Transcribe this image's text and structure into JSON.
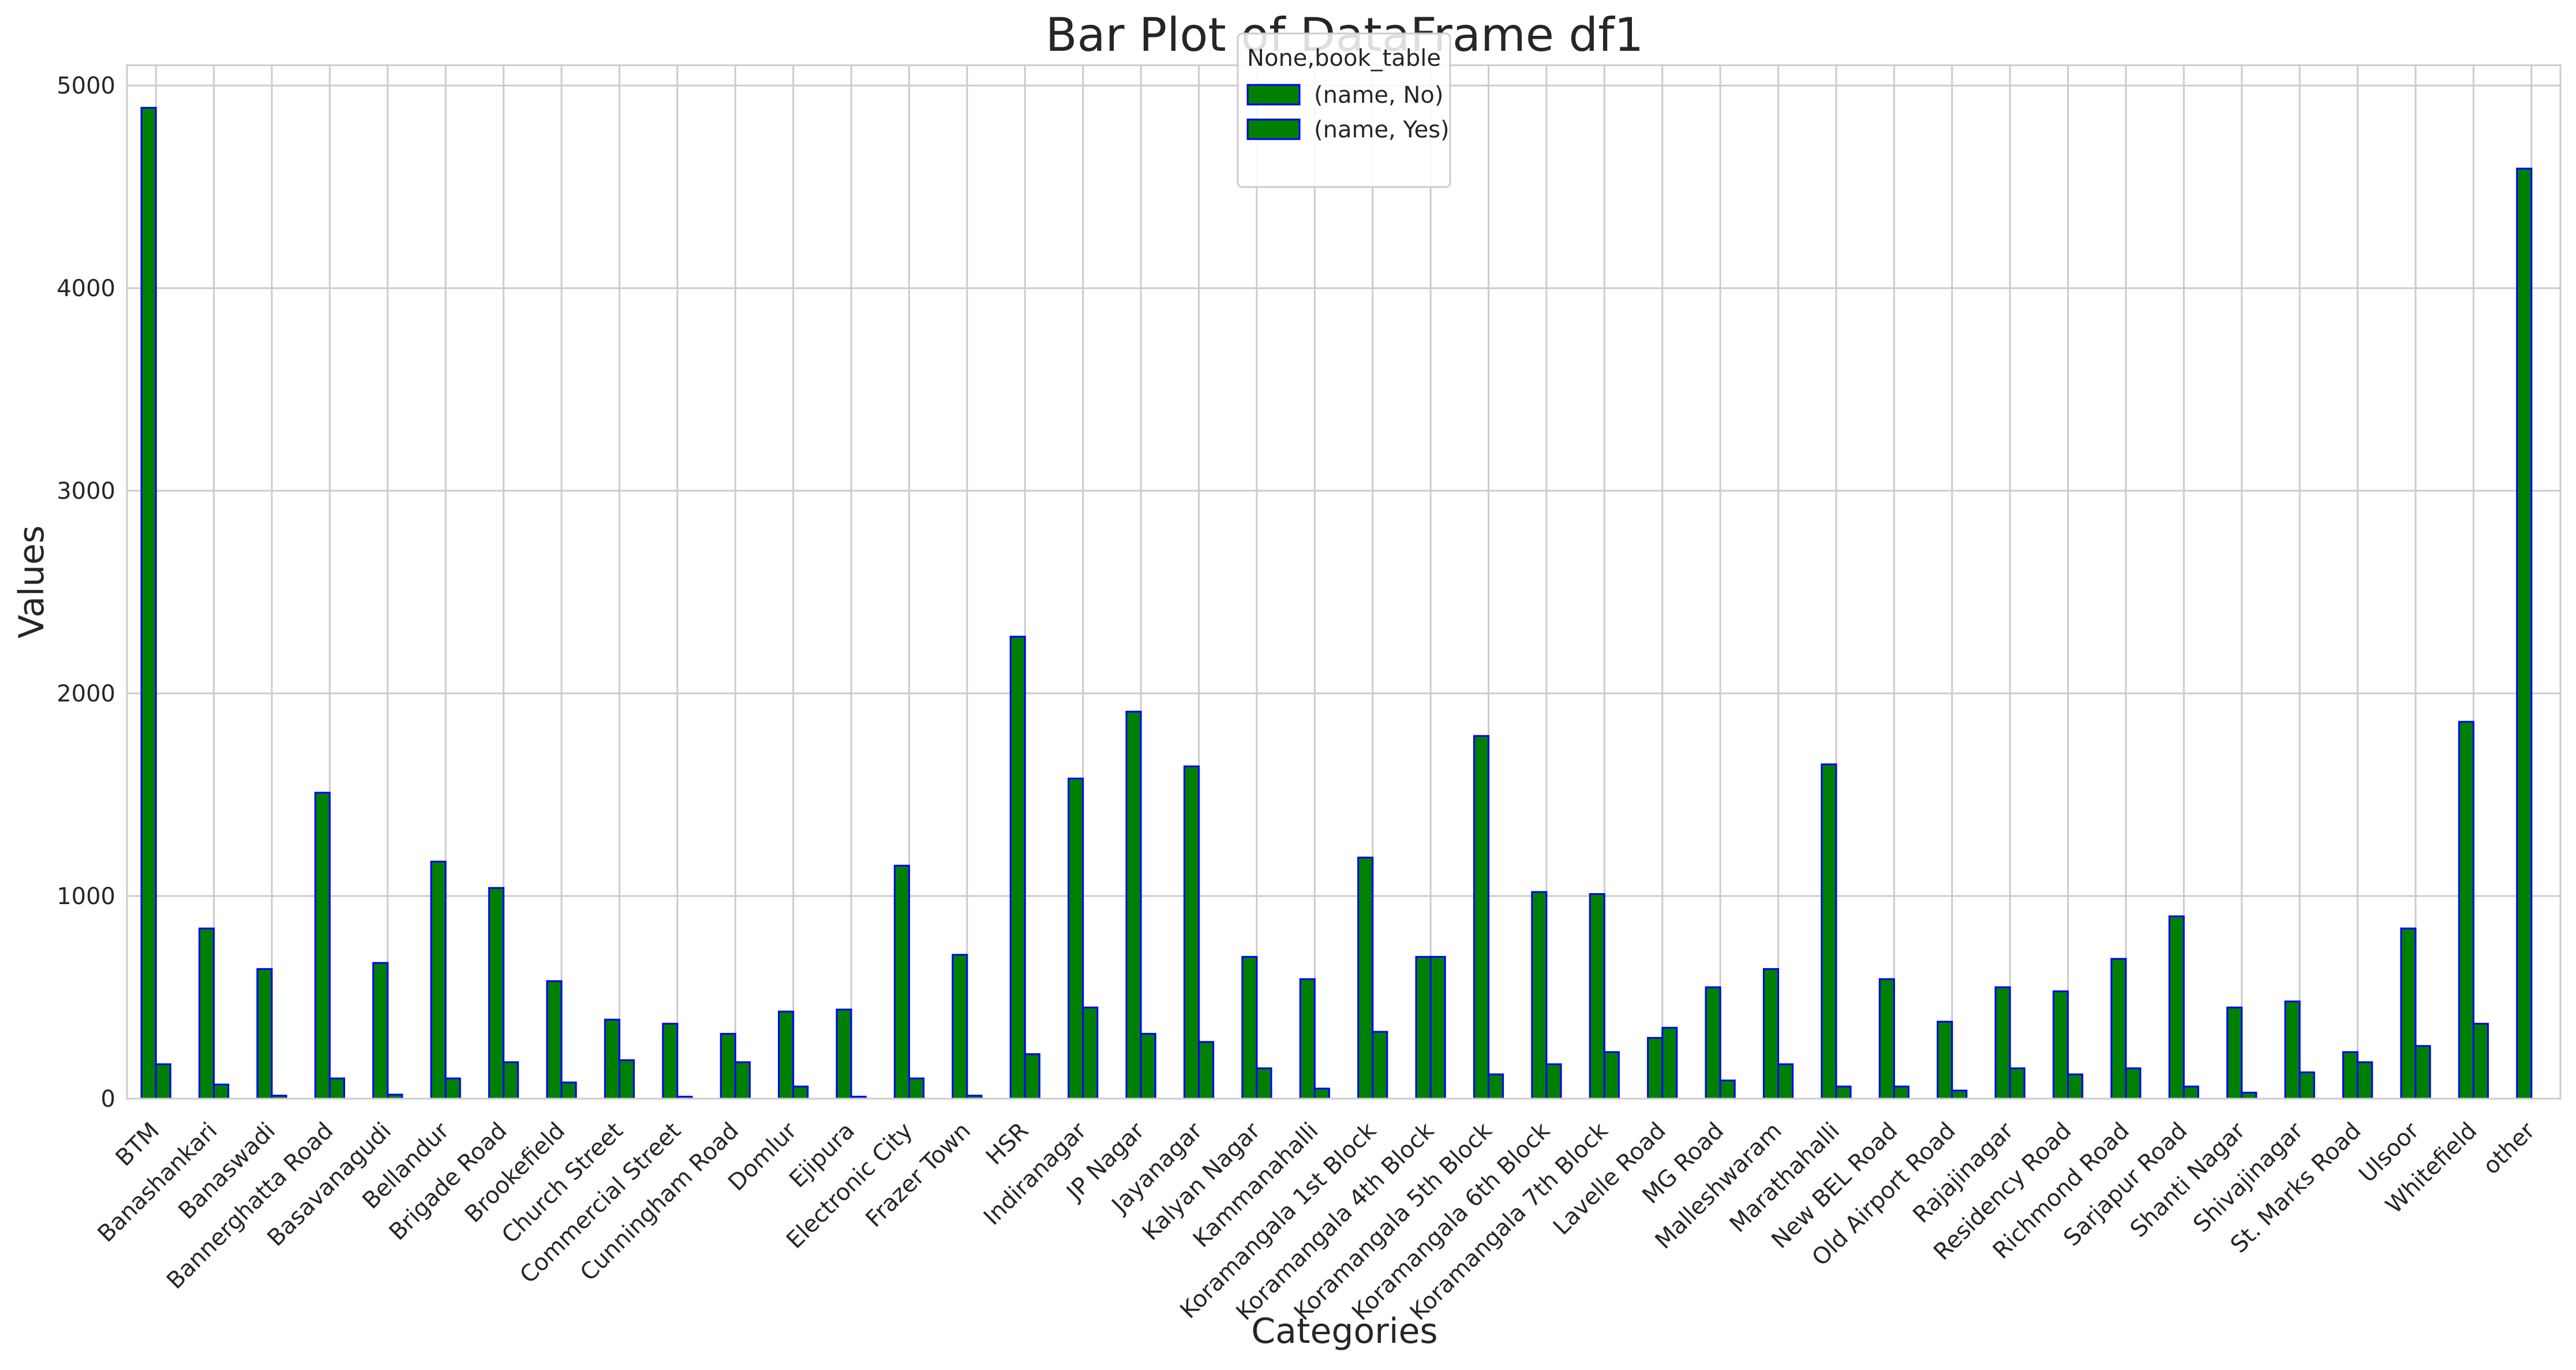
{
  "chart_data": {
    "type": "bar",
    "title": "Bar Plot of DataFrame df1",
    "xlabel": "Categories",
    "ylabel": "Values",
    "ylim": [
      0,
      5100
    ],
    "yticks": [
      0,
      1000,
      2000,
      3000,
      4000,
      5000
    ],
    "grid": true,
    "legend": {
      "title": "None,book_table",
      "placement": "top-center"
    },
    "categories": [
      "BTM",
      "Banashankari",
      "Banaswadi",
      "Bannerghatta Road",
      "Basavanagudi",
      "Bellandur",
      "Brigade Road",
      "Brookefield",
      "Church Street",
      "Commercial Street",
      "Cunningham Road",
      "Domlur",
      "Ejipura",
      "Electronic City",
      "Frazer Town",
      "HSR",
      "Indiranagar",
      "JP Nagar",
      "Jayanagar",
      "Kalyan Nagar",
      "Kammanahalli",
      "Koramangala 1st Block",
      "Koramangala 4th Block",
      "Koramangala 5th Block",
      "Koramangala 6th Block",
      "Koramangala 7th Block",
      "Lavelle Road",
      "MG Road",
      "Malleshwaram",
      "Marathahalli",
      "New BEL Road",
      "Old Airport Road",
      "Rajajinagar",
      "Residency Road",
      "Richmond Road",
      "Sarjapur Road",
      "Shanti Nagar",
      "Shivajinagar",
      "St. Marks Road",
      "Ulsoor",
      "Whitefield",
      "other"
    ],
    "series": [
      {
        "name": "(name, No)",
        "color": "#008000",
        "edgecolor": "#0000ff",
        "values": [
          4890,
          840,
          640,
          1510,
          670,
          1170,
          1040,
          580,
          390,
          370,
          320,
          430,
          440,
          1150,
          710,
          2280,
          1580,
          1910,
          1640,
          700,
          590,
          1190,
          700,
          1790,
          1020,
          1010,
          300,
          550,
          640,
          1650,
          590,
          380,
          550,
          530,
          690,
          900,
          450,
          480,
          230,
          840,
          1860,
          4590
        ]
      },
      {
        "name": "(name, Yes)",
        "color": "#008000",
        "edgecolor": "#0000ff",
        "values": [
          170,
          70,
          15,
          100,
          20,
          100,
          180,
          80,
          190,
          10,
          180,
          60,
          10,
          100,
          15,
          220,
          450,
          320,
          280,
          150,
          50,
          330,
          700,
          120,
          170,
          230,
          350,
          90,
          170,
          60,
          60,
          40,
          150,
          120,
          150,
          60,
          30,
          130,
          180,
          260,
          370,
          0
        ]
      }
    ]
  }
}
